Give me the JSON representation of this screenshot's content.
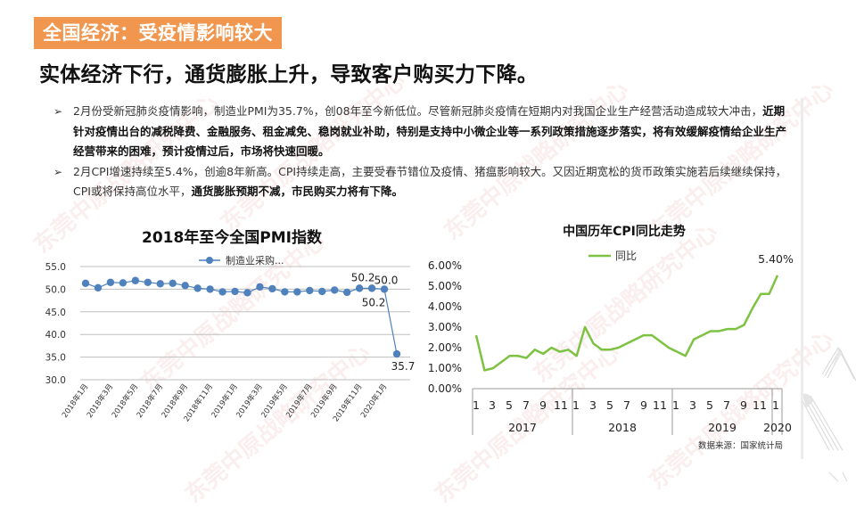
{
  "header": {
    "tag": "全国经济：受疫情影响较大",
    "headline": "实体经济下行，通货膨胀上升，导致客户购买力下降。",
    "tag_color": "#f0964e"
  },
  "bullets": [
    {
      "glyph": "➢",
      "normal1": "2月份受新冠肺炎疫情影响，制造业PMI为35.7%，创08年至今新低位。尽管新冠肺炎疫情在短期内对我国企业生产经营活动造成较大冲击，",
      "bold1": "近期针对疫情出台的减税降费、金融服务、租金减免、稳岗就业补助，特别是支持中小微企业等一系列政策措施逐步落实，将有效缓解疫情给企业生产经营带来的困难，预计疫情过后，市场将快速回暖。"
    },
    {
      "glyph": "➢",
      "normal1": "2月CPI增速持续至5.4%，创逾8年新高。CPI持续走高，主要受春节错位及疫情、猪瘟影响较大。又因近期宽松的货币政策实施若后续继续保持，CPI或将保持高位水平，",
      "bold1": "通货膨胀预期不减，市民购买力将有下降。"
    }
  ],
  "watermark": "东莞中原战略研究中心",
  "source": "数据来源：国家统计局",
  "chart_data": [
    {
      "type": "line",
      "title": "2018年至今全国PMI指数",
      "legend": [
        "制造业采购..."
      ],
      "legend_position": "top",
      "grid": true,
      "ylim": [
        30,
        55
      ],
      "yticks": [
        "30.0",
        "35.0",
        "40.0",
        "45.0",
        "50.0",
        "55.0"
      ],
      "y2ticks": [
        "0.00%",
        "1.00%",
        "2.00%",
        "3.00%",
        "4.00%",
        "5.00%",
        "6.00%"
      ],
      "xtick_labels": [
        "2018年1月",
        "2018年3月",
        "2018年5月",
        "2018年7月",
        "2018年9月",
        "2018年11月",
        "2019年1月",
        "2019年3月",
        "2019年5月",
        "2019年7月",
        "2019年9月",
        "2019年11月",
        "2020年1月"
      ],
      "x": [
        "2018-01",
        "2018-02",
        "2018-03",
        "2018-04",
        "2018-05",
        "2018-06",
        "2018-07",
        "2018-08",
        "2018-09",
        "2018-10",
        "2018-11",
        "2018-12",
        "2019-01",
        "2019-02",
        "2019-03",
        "2019-04",
        "2019-05",
        "2019-06",
        "2019-07",
        "2019-08",
        "2019-09",
        "2019-10",
        "2019-11",
        "2019-12",
        "2020-01",
        "2020-02"
      ],
      "series": [
        {
          "name": "制造业采购经理指数",
          "color": "#4f81bd",
          "values": [
            51.3,
            50.3,
            51.5,
            51.4,
            51.9,
            51.5,
            51.2,
            51.3,
            50.8,
            50.2,
            50.0,
            49.4,
            49.5,
            49.2,
            50.5,
            50.1,
            49.4,
            49.4,
            49.7,
            49.5,
            49.8,
            49.3,
            50.2,
            50.2,
            50.0,
            35.7
          ]
        }
      ],
      "data_labels": [
        {
          "index": 22,
          "text": "50.2"
        },
        {
          "index": 23,
          "text": "50.2"
        },
        {
          "index": 24,
          "text": "50.0"
        },
        {
          "index": 25,
          "text": "35.7"
        }
      ]
    },
    {
      "type": "line",
      "title": "中国历年CPI同比走势",
      "legend": [
        "同比"
      ],
      "legend_position": "top",
      "grid": false,
      "ylim": [
        0,
        6
      ],
      "x_month_labels": [
        "1",
        "3",
        "5",
        "7",
        "9",
        "11",
        "1",
        "3",
        "5",
        "7",
        "9",
        "11",
        "1",
        "3",
        "5",
        "7",
        "9",
        "11",
        "1"
      ],
      "x_year_labels": [
        "2017",
        "2018",
        "2019",
        "2020"
      ],
      "series": [
        {
          "name": "同比",
          "color": "#7dc242",
          "values": [
            2.5,
            0.8,
            0.9,
            1.2,
            1.5,
            1.5,
            1.4,
            1.8,
            1.6,
            1.9,
            1.7,
            1.8,
            1.5,
            2.9,
            2.1,
            1.8,
            1.8,
            1.9,
            2.1,
            2.3,
            2.5,
            2.5,
            2.2,
            1.9,
            1.7,
            1.5,
            2.3,
            2.5,
            2.7,
            2.7,
            2.8,
            2.8,
            3.0,
            3.8,
            4.5,
            4.5,
            5.4
          ]
        }
      ],
      "data_labels": [
        {
          "index": 36,
          "text": "5.40%"
        }
      ]
    }
  ]
}
